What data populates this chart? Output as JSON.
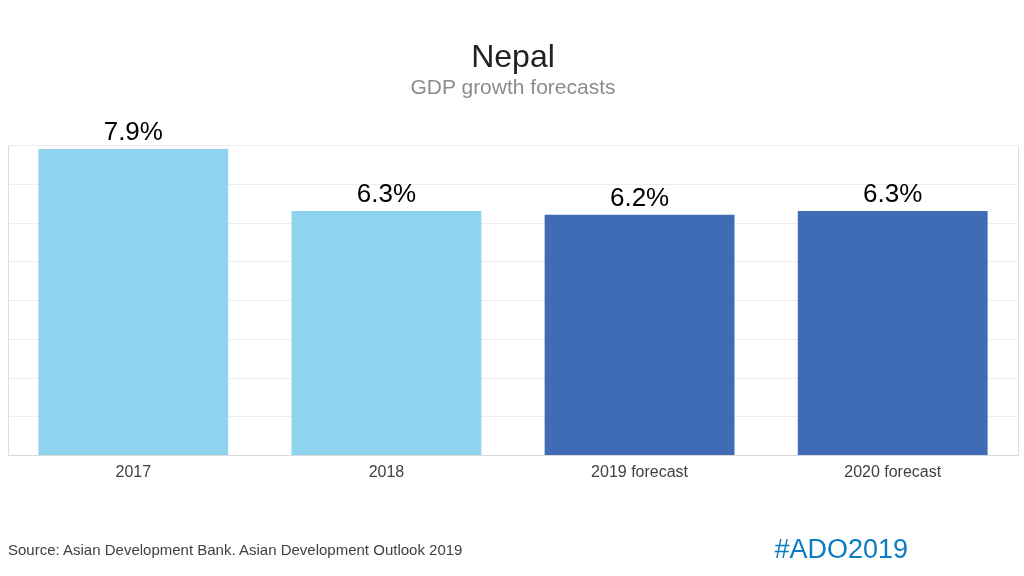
{
  "chart_data": {
    "type": "bar",
    "title": "Nepal",
    "subtitle": "GDP growth forecasts",
    "categories": [
      "2017",
      "2018",
      "2019 forecast",
      "2020 forecast"
    ],
    "values": [
      7.9,
      6.3,
      6.2,
      6.3
    ],
    "colors": [
      "#8fd4ef",
      "#8fd4ef",
      "#3f6cb4",
      "#3f6cb4"
    ],
    "value_labels": [
      "7.9%",
      "6.3%",
      "6.2%",
      "6.3%"
    ],
    "tick_labels": "x",
    "grid": "y",
    "annotations": [
      "Source: Asian Development Bank. Asian Development Outlook 2019",
      "#ADO2019"
    ]
  }
}
